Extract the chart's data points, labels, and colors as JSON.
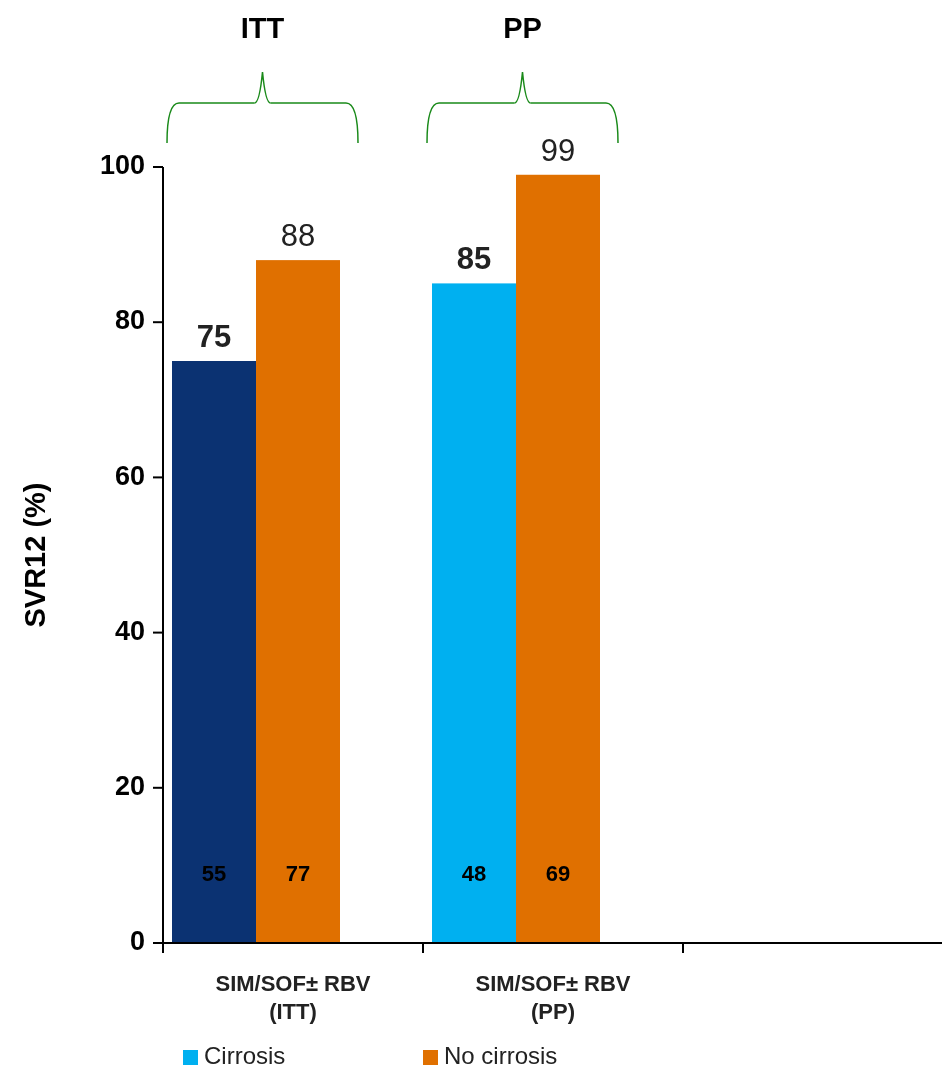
{
  "chart_data": {
    "type": "bar",
    "ylabel": "SVR12 (%)",
    "categories": [
      "SIM/SOF± RBV (ITT)",
      "SIM/SOF± RBV (PP)",
      null
    ],
    "series": [
      {
        "name": "Cirrosis",
        "color": "#00b0f0",
        "colors": [
          "#0b3272",
          "#00b0f0",
          null
        ],
        "values": [
          75,
          85,
          null
        ]
      },
      {
        "name": "No cirrosis",
        "color": "#e07000",
        "values": [
          88,
          99,
          null
        ]
      }
    ],
    "ylim": [
      0,
      100
    ],
    "yticks": [
      0,
      20,
      40,
      60,
      80,
      100
    ],
    "data_labels": true,
    "legend": "bottom",
    "annotations": [
      "ITT",
      "PP",
      "55",
      "77",
      "48",
      "69"
    ]
  }
}
